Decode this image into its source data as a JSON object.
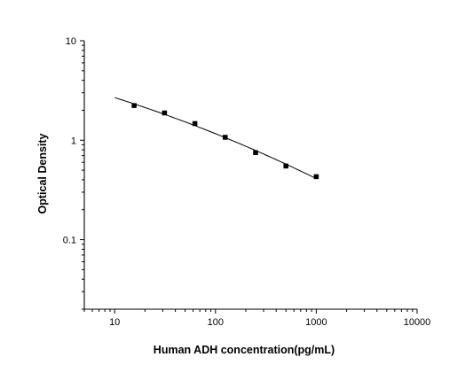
{
  "chart_data": {
    "type": "scatter",
    "title": "",
    "xlabel": "Human ADH concentration(pg/mL)",
    "ylabel": "Optical Density",
    "x_scale": "log",
    "y_scale": "log",
    "xlim": [
      5,
      10000
    ],
    "ylim": [
      0.02,
      10
    ],
    "x_ticks": [
      10,
      100,
      1000,
      10000
    ],
    "x_tick_labels": [
      "10",
      "100",
      "1000",
      "10000"
    ],
    "y_ticks": [
      0.1,
      1,
      10
    ],
    "y_tick_labels": [
      "0.1",
      "1",
      "10"
    ],
    "grid": false,
    "legend": "none",
    "series": [
      {
        "marker": "square",
        "color": "#000000",
        "x": [
          15.6,
          31.25,
          62.5,
          125,
          250,
          500,
          1000
        ],
        "y": [
          2.23,
          1.88,
          1.47,
          1.07,
          0.75,
          0.55,
          0.43
        ]
      }
    ],
    "fit_curve": {
      "color": "#000000",
      "x_range": [
        10,
        1000
      ]
    }
  }
}
